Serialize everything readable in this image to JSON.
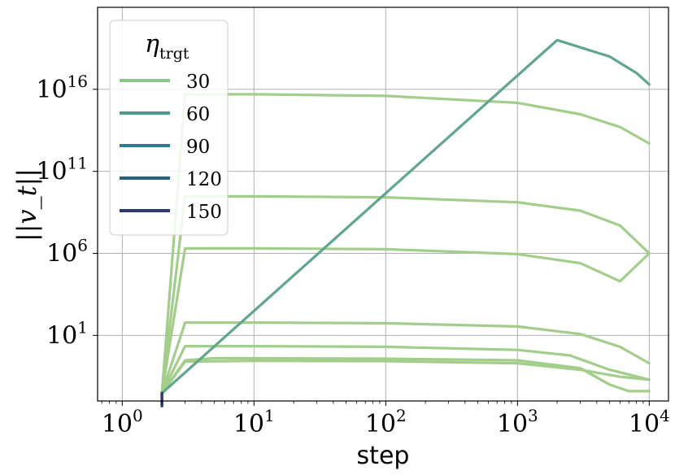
{
  "chart_data": {
    "type": "line",
    "xlabel": "step",
    "ylabel": "||v_t||",
    "x_scale": "log",
    "y_scale": "log",
    "xlim": [
      0.65,
      14000
    ],
    "ylim": [
      0.001,
      1e+21
    ],
    "grid": true,
    "x_ticks": [
      {
        "base": "10",
        "exp": "0",
        "value": 1
      },
      {
        "base": "10",
        "exp": "1",
        "value": 10
      },
      {
        "base": "10",
        "exp": "2",
        "value": 100
      },
      {
        "base": "10",
        "exp": "3",
        "value": 1000
      },
      {
        "base": "10",
        "exp": "4",
        "value": 10000
      }
    ],
    "y_ticks": [
      {
        "base": "10",
        "exp": "1",
        "value": 10
      },
      {
        "base": "10",
        "exp": "6",
        "value": 1000000.0
      },
      {
        "base": "10",
        "exp": "11",
        "value": 100000000000.0
      },
      {
        "base": "10",
        "exp": "16",
        "value": 1e+16
      }
    ],
    "legend": {
      "title_main": "η",
      "title_sub": "trgt",
      "placement": "top-left",
      "entries": [
        {
          "label": "30",
          "color": "#8cc58c"
        },
        {
          "label": "60",
          "color": "#4c9a8a"
        },
        {
          "label": "90",
          "color": "#2e7b89"
        },
        {
          "label": "120",
          "color": "#245f7c"
        },
        {
          "label": "150",
          "color": "#2d3a6e"
        }
      ]
    },
    "series": [
      {
        "color": "#a3cd8b",
        "points": [
          [
            2,
            0.003
          ],
          [
            3,
            5000000000000000.0
          ],
          [
            10,
            5000000000000000.0
          ],
          [
            100,
            4000000000000000.0
          ],
          [
            1000,
            1500000000000000.0
          ],
          [
            3000,
            300000000000000.0
          ],
          [
            6000,
            50000000000000.0
          ],
          [
            10000,
            5000000000000.0
          ]
        ]
      },
      {
        "color": "#a3cd8b",
        "points": [
          [
            2,
            0.003
          ],
          [
            3,
            3000000000.0
          ],
          [
            10,
            3000000000.0
          ],
          [
            100,
            2600000000.0
          ],
          [
            1000,
            1300000000.0
          ],
          [
            3000,
            400000000.0
          ],
          [
            6000,
            50000000.0
          ],
          [
            10000,
            1000000.0
          ]
        ]
      },
      {
        "color": "#a3cd8b",
        "points": [
          [
            2,
            0.003
          ],
          [
            3,
            2000000.0
          ],
          [
            10,
            2000000.0
          ],
          [
            100,
            1800000.0
          ],
          [
            1000,
            900000.0
          ],
          [
            3000,
            250000.0
          ],
          [
            6000,
            20000.0
          ],
          [
            10000,
            1000000.0
          ]
        ]
      },
      {
        "color": "#a3cd8b",
        "points": [
          [
            2,
            0.003
          ],
          [
            3,
            60
          ],
          [
            10,
            60
          ],
          [
            100,
            55
          ],
          [
            1000,
            35
          ],
          [
            3000,
            12
          ],
          [
            6000,
            2
          ],
          [
            10000,
            0.2
          ]
        ]
      },
      {
        "color": "#a3cd8b",
        "points": [
          [
            2,
            0.003
          ],
          [
            3,
            2.2
          ],
          [
            10,
            2.2
          ],
          [
            100,
            2
          ],
          [
            1000,
            1.3
          ],
          [
            2500,
            0.6
          ],
          [
            5000,
            0.08
          ],
          [
            10000,
            0.02
          ]
        ]
      },
      {
        "color": "#a3cd8b",
        "points": [
          [
            2,
            0.003
          ],
          [
            3,
            0.3
          ],
          [
            5,
            0.4
          ],
          [
            10,
            0.4
          ],
          [
            100,
            0.38
          ],
          [
            1000,
            0.3
          ],
          [
            3000,
            0.1
          ],
          [
            5000,
            0.01
          ],
          [
            7000,
            0.004
          ],
          [
            10000,
            0.004
          ]
        ]
      },
      {
        "color": "#a3cd8b",
        "points": [
          [
            2,
            0.003
          ],
          [
            3,
            0.25
          ],
          [
            10,
            0.28
          ],
          [
            100,
            0.27
          ],
          [
            1000,
            0.2
          ],
          [
            3000,
            0.08
          ],
          [
            6000,
            0.03
          ],
          [
            10000,
            0.02
          ]
        ]
      },
      {
        "color": "#5fa68d",
        "points": [
          [
            2,
            0.003
          ],
          [
            2000,
            1e+19
          ],
          [
            5000,
            1e+18
          ],
          [
            8000,
            1e+17
          ],
          [
            10000,
            2e+16
          ]
        ]
      },
      {
        "color": "#2d3a6e",
        "points": [
          [
            2,
            0.0005
          ],
          [
            2,
            0.003
          ]
        ]
      }
    ]
  }
}
